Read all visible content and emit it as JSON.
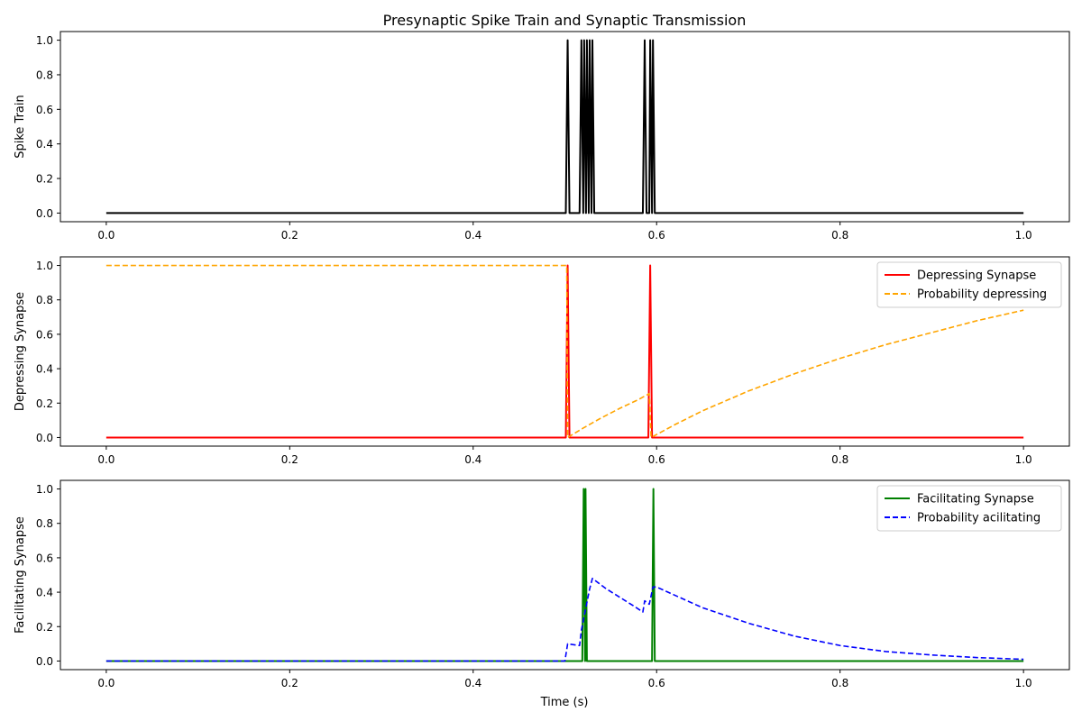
{
  "title": "Presynaptic Spike Train and Synaptic Transmission",
  "xlabel": "Time (s)",
  "chart_data": [
    {
      "type": "line",
      "ylabel": "Spike Train",
      "xlim": [
        -0.05,
        1.05
      ],
      "ylim": [
        -0.05,
        1.05
      ],
      "xticks": [
        "0.0",
        "0.2",
        "0.4",
        "0.6",
        "0.8",
        "1.0"
      ],
      "yticks": [
        "0.0",
        "0.2",
        "0.4",
        "0.6",
        "0.8",
        "1.0"
      ],
      "grid": false,
      "legend": null,
      "series": [
        {
          "color": "#000000",
          "dash": "solid",
          "points": [
            [
              0,
              0
            ],
            [
              0.501,
              0
            ],
            [
              0.503,
              1
            ],
            [
              0.505,
              0
            ],
            [
              0.516,
              0
            ],
            [
              0.518,
              1
            ],
            [
              0.52,
              0
            ],
            [
              0.521,
              1
            ],
            [
              0.523,
              0
            ],
            [
              0.524,
              1
            ],
            [
              0.526,
              0
            ],
            [
              0.527,
              1
            ],
            [
              0.529,
              0
            ],
            [
              0.53,
              1
            ],
            [
              0.532,
              0
            ],
            [
              0.585,
              0
            ],
            [
              0.587,
              1
            ],
            [
              0.589,
              0
            ],
            [
              0.592,
              0
            ],
            [
              0.593,
              1
            ],
            [
              0.595,
              0
            ],
            [
              0.596,
              1
            ],
            [
              0.598,
              0
            ],
            [
              1.0,
              0
            ]
          ]
        }
      ]
    },
    {
      "type": "line",
      "ylabel": "Depressing Synapse",
      "xlim": [
        -0.05,
        1.05
      ],
      "ylim": [
        -0.05,
        1.05
      ],
      "xticks": [
        "0.0",
        "0.2",
        "0.4",
        "0.6",
        "0.8",
        "1.0"
      ],
      "yticks": [
        "0.0",
        "0.2",
        "0.4",
        "0.6",
        "0.8",
        "1.0"
      ],
      "grid": false,
      "legend": "top-right",
      "series": [
        {
          "name": "Depressing Synapse",
          "color": "#ff0000",
          "dash": "solid",
          "points": [
            [
              0,
              0
            ],
            [
              0.501,
              0
            ],
            [
              0.503,
              1
            ],
            [
              0.505,
              0
            ],
            [
              0.591,
              0
            ],
            [
              0.593,
              1
            ],
            [
              0.595,
              0
            ],
            [
              1.0,
              0
            ]
          ]
        },
        {
          "name": "Probability depressing",
          "color": "#ffa500",
          "dash": "dashed",
          "points": [
            [
              0,
              1
            ],
            [
              0.502,
              1
            ],
            [
              0.503,
              0
            ],
            [
              0.52,
              0.055
            ],
            [
              0.54,
              0.115
            ],
            [
              0.56,
              0.17
            ],
            [
              0.58,
              0.22
            ],
            [
              0.592,
              0.255
            ],
            [
              0.594,
              0
            ],
            [
              0.62,
              0.075
            ],
            [
              0.65,
              0.155
            ],
            [
              0.7,
              0.27
            ],
            [
              0.75,
              0.37
            ],
            [
              0.8,
              0.46
            ],
            [
              0.85,
              0.54
            ],
            [
              0.9,
              0.61
            ],
            [
              0.95,
              0.68
            ],
            [
              1.0,
              0.74
            ]
          ]
        }
      ]
    },
    {
      "type": "line",
      "ylabel": "Facilitating Synapse",
      "xlim": [
        -0.05,
        1.05
      ],
      "ylim": [
        -0.05,
        1.05
      ],
      "xticks": [
        "0.0",
        "0.2",
        "0.4",
        "0.6",
        "0.8",
        "1.0"
      ],
      "yticks": [
        "0.0",
        "0.2",
        "0.4",
        "0.6",
        "0.8",
        "1.0"
      ],
      "grid": false,
      "legend": "top-right",
      "series": [
        {
          "name": "Facilitating Synapse",
          "color": "#008000",
          "dash": "solid",
          "points": [
            [
              0,
              0
            ],
            [
              0.519,
              0
            ],
            [
              0.5205,
              1
            ],
            [
              0.522,
              0
            ],
            [
              0.5225,
              1
            ],
            [
              0.524,
              0
            ],
            [
              0.595,
              0
            ],
            [
              0.5965,
              1
            ],
            [
              0.598,
              0
            ],
            [
              1.0,
              0
            ]
          ]
        },
        {
          "name": "Probability acilitating",
          "color": "#0000ff",
          "dash": "dashed",
          "points": [
            [
              0,
              0
            ],
            [
              0.5,
              0
            ],
            [
              0.503,
              0.1
            ],
            [
              0.516,
              0.09
            ],
            [
              0.518,
              0.18
            ],
            [
              0.521,
              0.26
            ],
            [
              0.524,
              0.34
            ],
            [
              0.527,
              0.42
            ],
            [
              0.53,
              0.48
            ],
            [
              0.545,
              0.42
            ],
            [
              0.56,
              0.37
            ],
            [
              0.575,
              0.32
            ],
            [
              0.585,
              0.285
            ],
            [
              0.587,
              0.35
            ],
            [
              0.592,
              0.33
            ],
            [
              0.596,
              0.43
            ],
            [
              0.6,
              0.43
            ],
            [
              0.65,
              0.31
            ],
            [
              0.7,
              0.22
            ],
            [
              0.75,
              0.145
            ],
            [
              0.8,
              0.09
            ],
            [
              0.85,
              0.055
            ],
            [
              0.9,
              0.035
            ],
            [
              0.95,
              0.02
            ],
            [
              1.0,
              0.01
            ]
          ]
        }
      ]
    }
  ]
}
